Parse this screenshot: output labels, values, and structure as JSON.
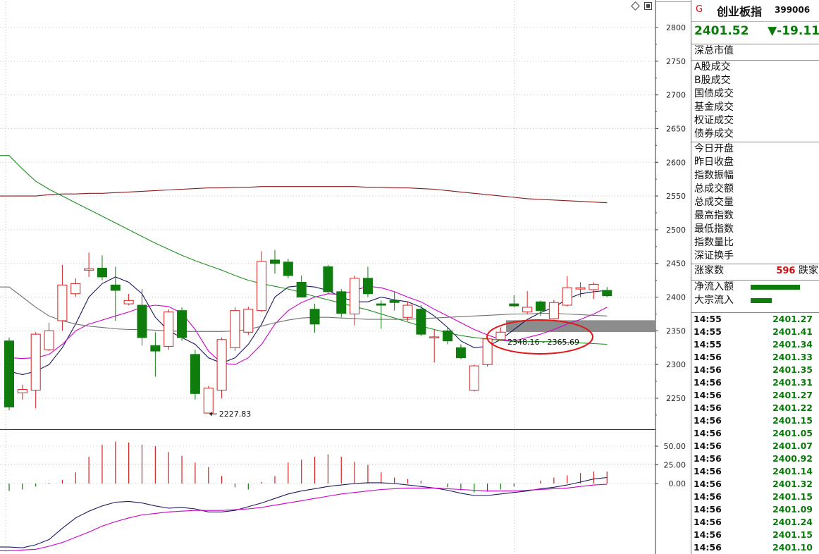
{
  "chart_data": {
    "type": "candlestick",
    "y_ticks": [
      "2800",
      "2750",
      "2700",
      "2650",
      "2600",
      "2550",
      "2500",
      "2450",
      "2400",
      "2350",
      "2300",
      "2250"
    ],
    "ylim": [
      2210,
      2820
    ],
    "annotations": {
      "low_label": "2227.83",
      "range_label": "2348.16 - 2365.69"
    },
    "candles": [
      {
        "o": 2335,
        "c": 2237,
        "h": 2340,
        "l": 2232
      },
      {
        "o": 2258,
        "c": 2263,
        "h": 2270,
        "l": 2248
      },
      {
        "o": 2262,
        "c": 2345,
        "h": 2348,
        "l": 2235
      },
      {
        "o": 2322,
        "c": 2350,
        "h": 2362,
        "l": 2320
      },
      {
        "o": 2365,
        "c": 2418,
        "h": 2448,
        "l": 2350
      },
      {
        "o": 2405,
        "c": 2420,
        "h": 2428,
        "l": 2400
      },
      {
        "o": 2440,
        "c": 2442,
        "h": 2466,
        "l": 2430
      },
      {
        "o": 2443,
        "c": 2430,
        "h": 2462,
        "l": 2425
      },
      {
        "o": 2418,
        "c": 2410,
        "h": 2445,
        "l": 2365
      },
      {
        "o": 2390,
        "c": 2395,
        "h": 2405,
        "l": 2388
      },
      {
        "o": 2388,
        "c": 2340,
        "h": 2412,
        "l": 2328
      },
      {
        "o": 2328,
        "c": 2320,
        "h": 2348,
        "l": 2282
      },
      {
        "o": 2327,
        "c": 2378,
        "h": 2382,
        "l": 2322
      },
      {
        "o": 2380,
        "c": 2340,
        "h": 2385,
        "l": 2335
      },
      {
        "o": 2315,
        "c": 2257,
        "h": 2322,
        "l": 2248
      },
      {
        "o": 2228,
        "c": 2265,
        "h": 2268,
        "l": 2228
      },
      {
        "o": 2262,
        "c": 2337,
        "h": 2340,
        "l": 2250
      },
      {
        "o": 2325,
        "c": 2380,
        "h": 2385,
        "l": 2320
      },
      {
        "o": 2348,
        "c": 2382,
        "h": 2386,
        "l": 2344
      },
      {
        "o": 2380,
        "c": 2453,
        "h": 2468,
        "l": 2378
      },
      {
        "o": 2455,
        "c": 2450,
        "h": 2470,
        "l": 2435
      },
      {
        "o": 2452,
        "c": 2432,
        "h": 2457,
        "l": 2428
      },
      {
        "o": 2422,
        "c": 2400,
        "h": 2432,
        "l": 2400
      },
      {
        "o": 2382,
        "c": 2360,
        "h": 2390,
        "l": 2347
      },
      {
        "o": 2445,
        "c": 2408,
        "h": 2448,
        "l": 2405
      },
      {
        "o": 2408,
        "c": 2376,
        "h": 2412,
        "l": 2370
      },
      {
        "o": 2375,
        "c": 2428,
        "h": 2432,
        "l": 2358
      },
      {
        "o": 2428,
        "c": 2405,
        "h": 2445,
        "l": 2400
      },
      {
        "o": 2390,
        "c": 2388,
        "h": 2395,
        "l": 2353
      },
      {
        "o": 2395,
        "c": 2392,
        "h": 2408,
        "l": 2380
      },
      {
        "o": 2370,
        "c": 2388,
        "h": 2393,
        "l": 2365
      },
      {
        "o": 2382,
        "c": 2345,
        "h": 2388,
        "l": 2342
      },
      {
        "o": 2340,
        "c": 2341,
        "h": 2352,
        "l": 2303
      },
      {
        "o": 2350,
        "c": 2335,
        "h": 2355,
        "l": 2330
      },
      {
        "o": 2325,
        "c": 2310,
        "h": 2330,
        "l": 2308
      },
      {
        "o": 2262,
        "c": 2298,
        "h": 2300,
        "l": 2260
      },
      {
        "o": 2300,
        "c": 2338,
        "h": 2340,
        "l": 2297
      },
      {
        "o": 2337,
        "c": 2348,
        "h": 2355,
        "l": 2335
      },
      {
        "o": 2390,
        "c": 2387,
        "h": 2403,
        "l": 2385
      },
      {
        "o": 2378,
        "c": 2385,
        "h": 2409,
        "l": 2375
      },
      {
        "o": 2393,
        "c": 2380,
        "h": 2395,
        "l": 2372
      },
      {
        "o": 2368,
        "c": 2392,
        "h": 2396,
        "l": 2367
      },
      {
        "o": 2388,
        "c": 2414,
        "h": 2431,
        "l": 2386
      },
      {
        "o": 2412,
        "c": 2414,
        "h": 2422,
        "l": 2400
      },
      {
        "o": 2411,
        "c": 2419,
        "h": 2422,
        "l": 2397
      },
      {
        "o": 2410,
        "c": 2402,
        "h": 2415,
        "l": 2400
      }
    ],
    "ma_series": [
      {
        "color": "#1a1a5e",
        "values": [
          2290,
          2285,
          2290,
          2300,
          2325,
          2360,
          2400,
          2420,
          2430,
          2422,
          2405,
          2370,
          2350,
          2340,
          2330,
          2310,
          2302,
          2310,
          2330,
          2360,
          2400,
          2415,
          2417,
          2415,
          2410,
          2400,
          2393,
          2393,
          2400,
          2396,
          2393,
          2385,
          2372,
          2355,
          2335,
          2325,
          2327,
          2337,
          2352,
          2367,
          2377,
          2385,
          2397,
          2405,
          2408,
          2410
        ]
      },
      {
        "color": "#cc00cc",
        "values": [
          2310,
          2309,
          2310,
          2315,
          2330,
          2350,
          2360,
          2366,
          2372,
          2378,
          2385,
          2388,
          2386,
          2376,
          2352,
          2320,
          2302,
          2300,
          2310,
          2330,
          2360,
          2380,
          2392,
          2400,
          2405,
          2404,
          2410,
          2416,
          2414,
          2408,
          2400,
          2393,
          2382,
          2372,
          2362,
          2352,
          2344,
          2337,
          2335,
          2340,
          2345,
          2352,
          2360,
          2367,
          2375,
          2385
        ]
      },
      {
        "color": "#707070",
        "values": [
          2415,
          2400,
          2385,
          2372,
          2365,
          2360,
          2357,
          2355,
          2353,
          2352,
          2352,
          2351,
          2350,
          2349,
          2349,
          2349,
          2349,
          2350,
          2352,
          2357,
          2362,
          2366,
          2369,
          2370,
          2370,
          2369,
          2368,
          2367,
          2367,
          2367,
          2367,
          2368,
          2369,
          2370,
          2371,
          2372,
          2373,
          2374,
          2375,
          2375,
          2376,
          2376,
          2375,
          2374,
          2373,
          2372
        ]
      },
      {
        "color": "#1f8f1f",
        "values": [
          2610,
          2590,
          2572,
          2560,
          2550,
          2540,
          2530,
          2520,
          2510,
          2500,
          2490,
          2480,
          2471,
          2462,
          2454,
          2447,
          2440,
          2432,
          2425,
          2420,
          2416,
          2412,
          2407,
          2401,
          2396,
          2391,
          2386,
          2381,
          2375,
          2369,
          2363,
          2357,
          2352,
          2347,
          2343,
          2340,
          2338,
          2336,
          2334,
          2334,
          2334,
          2334,
          2333,
          2332,
          2331,
          2330
        ]
      },
      {
        "color": "#8b1a1a",
        "values": [
          2550,
          2550,
          2550,
          2552,
          2553,
          2553,
          2554,
          2554,
          2555,
          2556,
          2557,
          2558,
          2559,
          2560,
          2561,
          2562,
          2562,
          2563,
          2563,
          2564,
          2564,
          2564,
          2564,
          2564,
          2564,
          2564,
          2564,
          2563,
          2563,
          2562,
          2562,
          2561,
          2560,
          2558,
          2556,
          2554,
          2552,
          2550,
          2548,
          2546,
          2545,
          2544,
          2543,
          2542,
          2541,
          2540
        ]
      }
    ],
    "macd": {
      "y_ticks": [
        "50.00",
        "25.00",
        "0.00"
      ],
      "ylim": [
        -100,
        60
      ],
      "hist": [
        -10,
        -8,
        -4,
        1,
        5,
        15,
        36,
        52,
        56,
        55,
        52,
        50,
        42,
        37,
        28,
        22,
        10,
        -5,
        -8,
        2,
        10,
        28,
        32,
        36,
        39,
        36,
        29,
        25,
        15,
        8,
        6,
        4,
        0,
        -5,
        -9,
        -12,
        -11,
        -8,
        -4,
        0,
        4,
        8,
        11,
        14,
        16,
        16
      ],
      "dif": [
        -85,
        -86,
        -82,
        -75,
        -60,
        -46,
        -37,
        -30,
        -25,
        -24,
        -26,
        -30,
        -33,
        -32,
        -34,
        -38,
        -38,
        -36,
        -31,
        -26,
        -20,
        -14,
        -10,
        -7,
        -4,
        -2,
        0,
        1,
        1,
        0,
        -2,
        -4,
        -6,
        -9,
        -13,
        -16,
        -16,
        -14,
        -12,
        -10,
        -7,
        -5,
        -2,
        2,
        6,
        8
      ],
      "dea": [
        -90,
        -89,
        -88,
        -84,
        -79,
        -72,
        -65,
        -57,
        -51,
        -46,
        -42,
        -40,
        -38,
        -37,
        -36,
        -36,
        -36,
        -35,
        -34,
        -32,
        -29,
        -26,
        -23,
        -20,
        -17,
        -14,
        -12,
        -10,
        -8,
        -7,
        -6,
        -6,
        -6,
        -7,
        -8,
        -9,
        -10,
        -10,
        -10,
        -9,
        -8,
        -7,
        -6,
        -4,
        -2,
        -1
      ]
    }
  },
  "panel": {
    "mark": "G",
    "name": "创业板指",
    "code": "399006",
    "price": "2401.52",
    "change": "▼-19.11",
    "rows1": [
      "深总市值"
    ],
    "rows2": [
      "A股成交",
      "B股成交",
      "国债成交",
      "基金成交",
      "权证成交",
      "债券成交"
    ],
    "rows3": [
      "今日开盘",
      "昨日收盘",
      "指数振幅",
      "总成交额",
      "总成交量",
      "最高指数",
      "最低指数",
      "指数量比",
      "深证换手"
    ],
    "adv_label": "涨家数",
    "adv_value": "596",
    "adv_tail": "跌家",
    "flow": [
      {
        "label": "净流入额",
        "level": 0.7
      },
      {
        "label": "大宗流入",
        "level": 0.3
      }
    ],
    "ticks": [
      {
        "t": "14:55",
        "v": "2401.27"
      },
      {
        "t": "14:55",
        "v": "2401.41"
      },
      {
        "t": "14:55",
        "v": "2401.34"
      },
      {
        "t": "14:56",
        "v": "2401.33"
      },
      {
        "t": "14:56",
        "v": "2401.35"
      },
      {
        "t": "14:56",
        "v": "2401.31"
      },
      {
        "t": "14:56",
        "v": "2401.27"
      },
      {
        "t": "14:56",
        "v": "2401.22"
      },
      {
        "t": "14:56",
        "v": "2401.15"
      },
      {
        "t": "14:56",
        "v": "2401.05"
      },
      {
        "t": "14:56",
        "v": "2401.07"
      },
      {
        "t": "14:56",
        "v": "2400.92"
      },
      {
        "t": "14:56",
        "v": "2401.14"
      },
      {
        "t": "14:56",
        "v": "2401.32"
      },
      {
        "t": "14:56",
        "v": "2401.15"
      },
      {
        "t": "14:56",
        "v": "2401.09"
      },
      {
        "t": "14:56",
        "v": "2401.24"
      },
      {
        "t": "14:56",
        "v": "2401.15"
      },
      {
        "t": "14:56",
        "v": "2401.10"
      }
    ]
  }
}
